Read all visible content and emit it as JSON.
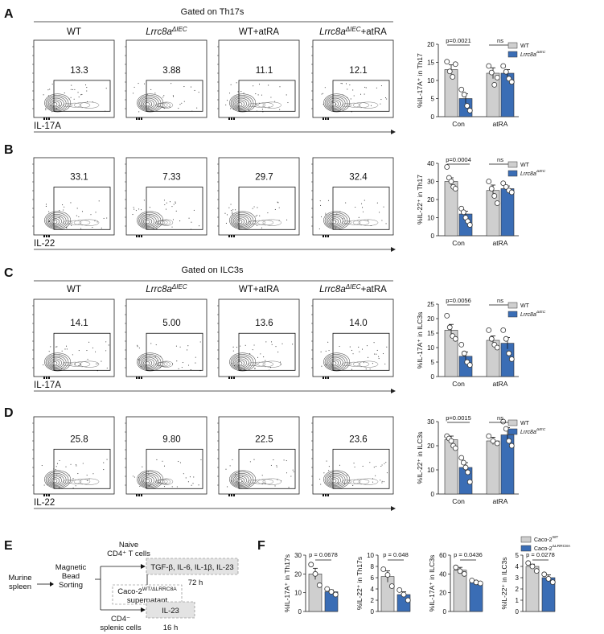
{
  "panels": {
    "A": {
      "letter": "A",
      "gate": "Gated on Th17s",
      "xlabel": "IL-17A",
      "values": [
        "13.3",
        "3.88",
        "11.1",
        "12.1"
      ]
    },
    "B": {
      "letter": "B",
      "xlabel": "IL-22",
      "values": [
        "33.1",
        "7.33",
        "29.7",
        "32.4"
      ]
    },
    "C": {
      "letter": "C",
      "gate": "Gated on ILC3s",
      "xlabel": "IL-17A",
      "values": [
        "14.1",
        "5.00",
        "13.6",
        "14.0"
      ]
    },
    "D": {
      "letter": "D",
      "xlabel": "IL-22",
      "values": [
        "25.8",
        "9.80",
        "22.5",
        "23.6"
      ]
    },
    "E": {
      "letter": "E"
    },
    "F": {
      "letter": "F"
    }
  },
  "columns": [
    "WT",
    "Lrrc8a",
    "WT+atRA",
    "Lrrc8a"
  ],
  "col_sup": "ΔIEC",
  "col_suffix": "+atRA",
  "legend": {
    "wt": "WT",
    "ko_base": "Lrrc8a",
    "ko_sup": "ΔIEC"
  },
  "colors": {
    "wt": "#cfcfcf",
    "ko": "#3a6db5"
  },
  "chart_data": [
    {
      "type": "bar",
      "id": "A",
      "ylabel": "%IL-17A⁺ in Th17",
      "ylim": [
        0,
        20
      ],
      "yticks": [
        0,
        5,
        10,
        15,
        20
      ],
      "categories": [
        "Con",
        "atRA"
      ],
      "series": [
        {
          "name": "WT",
          "values": [
            13,
            12
          ],
          "err": [
            1.3,
            1.5
          ],
          "points": [
            [
              15.2,
              12.5,
              11,
              14.5
            ],
            [
              14,
              12.2,
              8.8,
              10.8
            ]
          ]
        },
        {
          "name": "Lrrc8a ΔIEC",
          "values": [
            5,
            12
          ],
          "err": [
            1.3,
            1.0
          ],
          "points": [
            [
              7.5,
              6.1,
              3,
              1.7
            ],
            [
              14,
              12.4,
              10.5,
              9.6
            ]
          ]
        }
      ],
      "annotations": [
        {
          "text": "p=0.0021"
        },
        {
          "text": "ns"
        }
      ]
    },
    {
      "type": "bar",
      "id": "B",
      "ylabel": "%IL-22⁺ in Th17",
      "ylim": [
        0,
        40
      ],
      "yticks": [
        0,
        10,
        20,
        30,
        40
      ],
      "categories": [
        "Con",
        "atRA"
      ],
      "series": [
        {
          "name": "WT",
          "values": [
            30,
            25
          ],
          "err": [
            2,
            3
          ],
          "points": [
            [
              38,
              32,
              30,
              27,
              26
            ],
            [
              30,
              26,
              22,
              18
            ]
          ]
        },
        {
          "name": "Lrrc8a ΔIEC",
          "values": [
            12,
            26
          ],
          "err": [
            1.5,
            1.5
          ],
          "points": [
            [
              15,
              13,
              10,
              8,
              6
            ],
            [
              29,
              27,
              25,
              24
            ]
          ]
        }
      ],
      "annotations": [
        {
          "text": "p=0.0004"
        },
        {
          "text": "ns"
        }
      ]
    },
    {
      "type": "bar",
      "id": "C",
      "ylabel": "%IL-17A⁺ in ILC3s",
      "ylim": [
        0,
        25
      ],
      "yticks": [
        0,
        5,
        10,
        15,
        20,
        25
      ],
      "categories": [
        "Con",
        "atRA"
      ],
      "series": [
        {
          "name": "WT",
          "values": [
            16,
            12.5
          ],
          "err": [
            2,
            1.5
          ],
          "points": [
            [
              21,
              17,
              14,
              13
            ],
            [
              16,
              13,
              11,
              10
            ]
          ]
        },
        {
          "name": "Lrrc8a ΔIEC",
          "values": [
            7,
            11.5
          ],
          "err": [
            1.5,
            2
          ],
          "points": [
            [
              11,
              8,
              5,
              4
            ],
            [
              16,
              13,
              8,
              6
            ]
          ]
        }
      ],
      "annotations": [
        {
          "text": "p=0.0056"
        },
        {
          "text": "ns"
        }
      ]
    },
    {
      "type": "bar",
      "id": "D",
      "ylabel": "%IL-22⁺ in ILC3s",
      "ylim": [
        0,
        30
      ],
      "yticks": [
        0,
        10,
        20,
        30
      ],
      "categories": [
        "Con",
        "atRA"
      ],
      "series": [
        {
          "name": "WT",
          "values": [
            22.5,
            22
          ],
          "err": [
            1.5,
            1.5
          ],
          "points": [
            [
              24,
              23,
              22,
              20,
              19
            ],
            [
              24,
              22,
              21
            ]
          ]
        },
        {
          "name": "Lrrc8a ΔIEC",
          "values": [
            11,
            24.5
          ],
          "err": [
            2,
            3
          ],
          "points": [
            [
              15,
              13,
              11,
              9,
              5
            ],
            [
              33,
              27,
              22,
              20
            ]
          ]
        }
      ],
      "annotations": [
        {
          "text": "p=0.0015"
        },
        {
          "text": "ns"
        }
      ]
    },
    {
      "type": "bar",
      "id": "F1",
      "ylabel": "%IL-17A⁺ in Th17s",
      "ylim": [
        0,
        30
      ],
      "yticks": [
        0,
        10,
        20,
        30
      ],
      "series": [
        {
          "name": "Caco-2WT",
          "value": 20,
          "err": 3,
          "points": [
            25,
            20,
            14
          ]
        },
        {
          "name": "Caco-2ΔLRRC8A",
          "value": 10.5,
          "err": 1,
          "points": [
            12,
            10.5,
            9
          ]
        }
      ],
      "annotations": [
        {
          "text": "p = 0.0678"
        }
      ]
    },
    {
      "type": "bar",
      "id": "F2",
      "ylabel": "%IL-22⁺ in Th17s",
      "ylim": [
        0,
        10
      ],
      "yticks": [
        0,
        2,
        4,
        6,
        8,
        10
      ],
      "series": [
        {
          "name": "Caco-2WT",
          "value": 6.2,
          "err": 1,
          "points": [
            7.5,
            6.5,
            4.5
          ]
        },
        {
          "name": "Caco-2ΔLRRC8A",
          "value": 3,
          "err": 0.5,
          "points": [
            3.8,
            3,
            2
          ]
        }
      ],
      "annotations": [
        {
          "text": "p = 0.048"
        }
      ]
    },
    {
      "type": "bar",
      "id": "F3",
      "ylabel": "%IL-17A⁺ in ILC3s",
      "ylim": [
        0,
        60
      ],
      "yticks": [
        0,
        20,
        40,
        60
      ],
      "series": [
        {
          "name": "Caco-2WT",
          "value": 44,
          "err": 3,
          "points": [
            47,
            43,
            40
          ]
        },
        {
          "name": "Caco-2ΔLRRC8A",
          "value": 31,
          "err": 1,
          "points": [
            33,
            31,
            30
          ]
        }
      ],
      "annotations": [
        {
          "text": "p = 0.0436"
        }
      ]
    },
    {
      "type": "bar",
      "id": "F4",
      "ylabel": "%IL-22⁺ in ILC3s",
      "ylim": [
        0,
        5
      ],
      "yticks": [
        0,
        1,
        2,
        3,
        4,
        5
      ],
      "series": [
        {
          "name": "Caco-2WT",
          "value": 4,
          "err": 0.2,
          "points": [
            4.3,
            4,
            3.6
          ]
        },
        {
          "name": "Caco-2ΔLRRC8A",
          "value": 3,
          "err": 0.25,
          "points": [
            3.3,
            2.9,
            2.6
          ]
        }
      ],
      "annotations": [
        {
          "text": "p = 0.0278"
        }
      ]
    }
  ],
  "f_legend": {
    "wt_base": "Caco-2",
    "wt_sup": "WT",
    "ko_base": "Caco-2",
    "ko_sup": "ΔLRRC8A"
  },
  "flow": {
    "spleen1": "Murine",
    "spleen2": "spleen",
    "mag1": "Magnetic",
    "mag2": "Bead",
    "mag3": "Sorting",
    "naive1": "Naive",
    "naive2": "CD4⁺ T cells",
    "box1": "TGF-β, IL-6, IL-1β, IL-23",
    "t1": "72 h",
    "sup1_base": "Caco-2",
    "sup1_sup": "WT/ΔLRRC8A",
    "sup2": "supernatant",
    "box2": "IL-23",
    "cd4neg1": "CD4⁻",
    "cd4neg2": "splenic cells",
    "t2": "16 h"
  }
}
